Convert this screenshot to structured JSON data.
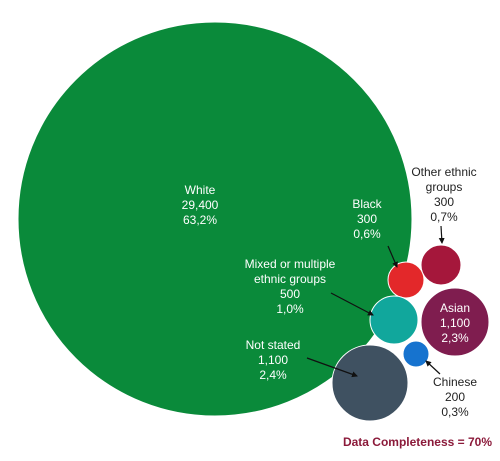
{
  "chart_data": {
    "type": "bubble",
    "title": "",
    "series": [
      {
        "name": "White",
        "count": 29400,
        "count_label": "29,400",
        "percent_label": "63,2%",
        "value": 63.2,
        "color": "#0a8a3a",
        "label_color": "#ffffff"
      },
      {
        "name": "Black",
        "count": 300,
        "count_label": "300",
        "percent_label": "0,6%",
        "value": 0.6,
        "color": "#e3282a",
        "label_color": "#ffffff"
      },
      {
        "name": "Other ethnic groups",
        "count": 300,
        "count_label": "300",
        "percent_label": "0,7%",
        "value": 0.7,
        "color": "#a5173b",
        "label_color": "#222222"
      },
      {
        "name": "Mixed or multiple ethnic groups",
        "count": 500,
        "count_label": "500",
        "percent_label": "1,0%",
        "value": 1.0,
        "color": "#11a79c",
        "label_color": "#ffffff"
      },
      {
        "name": "Asian",
        "count": 1100,
        "count_label": "1,100",
        "percent_label": "2,3%",
        "value": 2.3,
        "color": "#7f1d4f",
        "label_color": "#ffffff"
      },
      {
        "name": "Chinese",
        "count": 200,
        "count_label": "200",
        "percent_label": "0,3%",
        "value": 0.3,
        "color": "#1673cf",
        "label_color": "#222222"
      },
      {
        "name": "Not stated",
        "count": 1100,
        "count_label": "1,100",
        "percent_label": "2,4%",
        "value": 2.4,
        "color": "#3f5161",
        "label_color": "#ffffff"
      }
    ],
    "labels": {
      "White": [
        "White",
        "29,400",
        "63,2%"
      ],
      "Black": [
        "Black",
        "300",
        "0,6%"
      ],
      "Other ethnic groups": [
        "Other ethnic",
        "groups",
        "300",
        "0,7%"
      ],
      "Mixed or multiple ethnic groups": [
        "Mixed or multiple",
        "ethnic groups",
        "500",
        "1,0%"
      ],
      "Asian": [
        "Asian",
        "1,100",
        "2,3%"
      ],
      "Chinese": [
        "Chinese",
        "200",
        "0,3%"
      ],
      "Not stated": [
        "Not stated",
        "1,100",
        "2,4%"
      ]
    },
    "footer": "Data Completeness = 70%",
    "footer_color": "#8b1a3a"
  }
}
